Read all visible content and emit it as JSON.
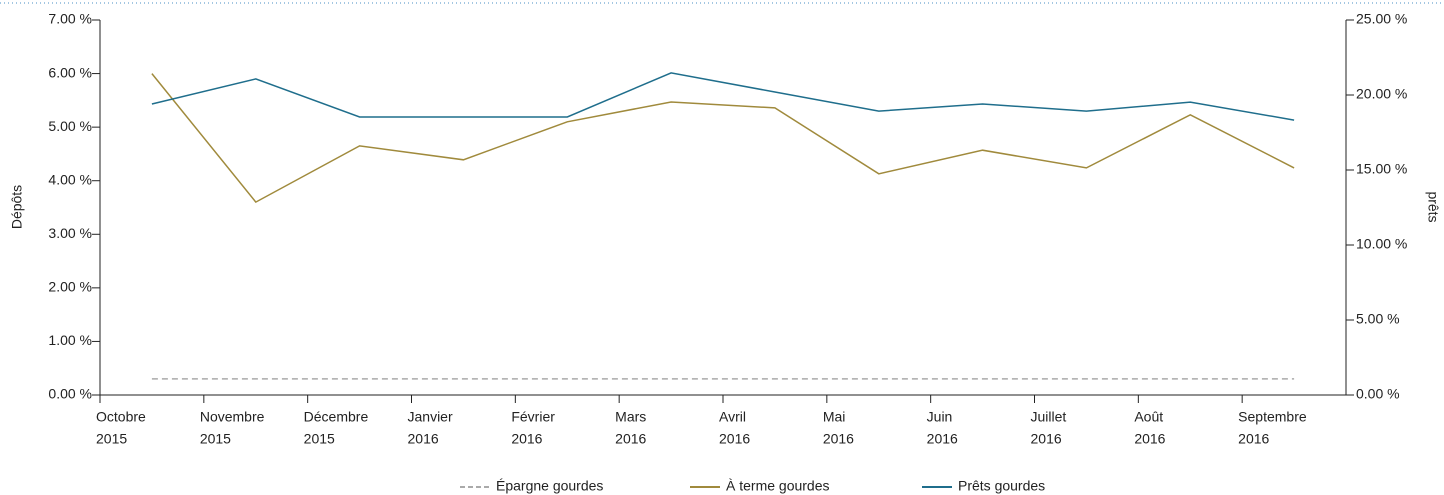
{
  "chart_data": {
    "type": "line",
    "categories": [
      [
        "Octobre",
        "2015"
      ],
      [
        "Novembre",
        "2015"
      ],
      [
        "Décembre",
        "2015"
      ],
      [
        "Janvier",
        "2016"
      ],
      [
        "Février",
        "2016"
      ],
      [
        "Mars",
        "2016"
      ],
      [
        "Avril",
        "2016"
      ],
      [
        "Mai",
        "2016"
      ],
      [
        "Juin",
        "2016"
      ],
      [
        "Juillet",
        "2016"
      ],
      [
        "Août",
        "2016"
      ],
      [
        "Septembre",
        "2016"
      ]
    ],
    "y_label": "Dépôts",
    "y2_label": "prêts",
    "ylim": [
      0,
      7
    ],
    "yticks": [
      {
        "value": 0,
        "label": "0.00 %"
      },
      {
        "value": 1,
        "label": "1.00 %"
      },
      {
        "value": 2,
        "label": "2.00 %"
      },
      {
        "value": 3,
        "label": "3.00 %"
      },
      {
        "value": 4,
        "label": "4.00 %"
      },
      {
        "value": 5,
        "label": "5.00 %"
      },
      {
        "value": 6,
        "label": "6.00 %"
      },
      {
        "value": 7,
        "label": "7.00 %"
      }
    ],
    "y2lim": [
      0,
      25
    ],
    "y2ticks": [
      {
        "value": 0,
        "label": "0.00 %"
      },
      {
        "value": 5,
        "label": "5.00 %"
      },
      {
        "value": 10,
        "label": "10.00 %"
      },
      {
        "value": 15,
        "label": "15.00 %"
      },
      {
        "value": 20,
        "label": "20.00 %"
      },
      {
        "value": 25,
        "label": "25.00 %"
      }
    ],
    "series": [
      {
        "name": "Épargne gourdes",
        "color": "#aaaaaa",
        "dashed": true,
        "values": [
          0.3,
          0.3,
          0.3,
          0.3,
          0.3,
          0.3,
          0.3,
          0.3,
          0.3,
          0.3,
          0.3,
          0.3
        ]
      },
      {
        "name": "À terme gourdes",
        "color": "#a08a3c",
        "values": [
          6.0,
          3.6,
          4.65,
          4.39,
          5.1,
          5.47,
          5.36,
          4.13,
          4.57,
          4.24,
          5.23,
          4.24
        ]
      },
      {
        "name": "Prêts gourdes",
        "color": "#1f6e8c",
        "axis": "y2",
        "values": [
          19.4,
          21.07,
          18.53,
          18.53,
          18.53,
          21.47,
          20.2,
          18.93,
          19.4,
          18.93,
          19.53,
          18.33
        ]
      }
    ]
  }
}
